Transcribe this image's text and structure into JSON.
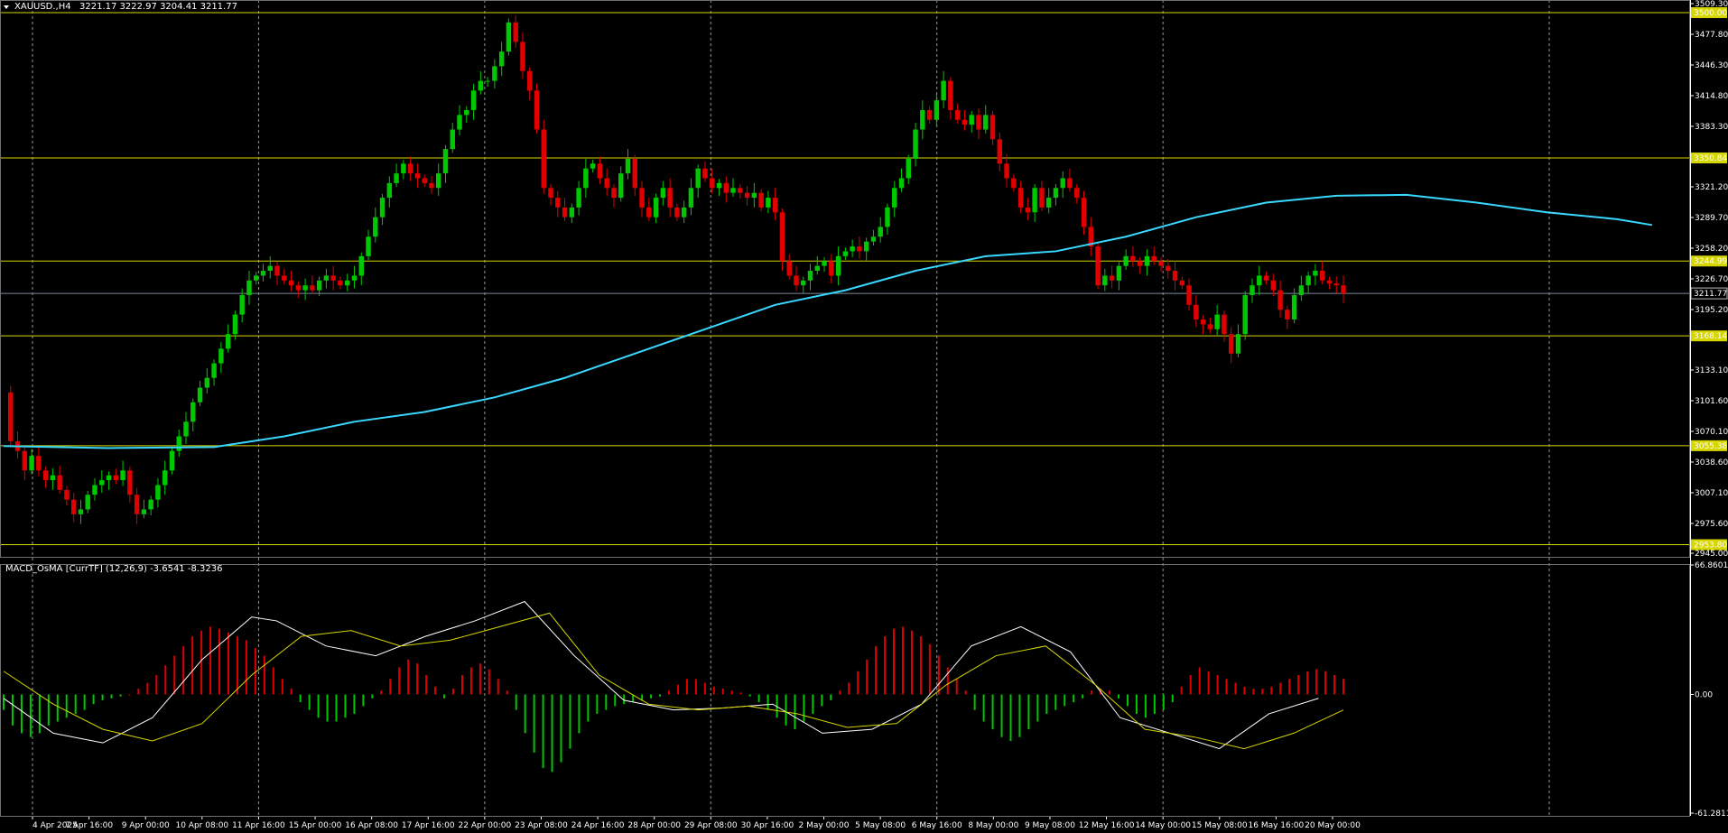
{
  "main_chart": {
    "symbol": "XAUUSD.,H4",
    "ohlc_label": "3221.17 3222.97 3204.41 3211.77",
    "colors": {
      "bull": "#00c800",
      "bear": "#e00000",
      "ma": "#38d8ff",
      "level": "#d6d600",
      "grid": "#c8c8c8",
      "price_line": "#7a8b99"
    }
  },
  "indicator": {
    "title": "MACD_OsMA [CurrTF] (12,26,9) -3.6541 -8.3236",
    "colors": {
      "hist_pos": "#dc0000",
      "hist_neg": "#00c800",
      "macd": "#ffffff",
      "signal": "#d6d600"
    }
  },
  "chart_data": [
    {
      "type": "candlestick",
      "title": "XAUUSD.,H4",
      "ylim": [
        2945.0,
        3509.3
      ],
      "x_labels": [
        "4 Apr 2025",
        "7 Apr 16:00",
        "9 Apr 00:00",
        "10 Apr 08:00",
        "11 Apr 16:00",
        "15 Apr 00:00",
        "16 Apr 08:00",
        "17 Apr 16:00",
        "22 Apr 00:00",
        "23 Apr 08:00",
        "24 Apr 16:00",
        "28 Apr 00:00",
        "29 Apr 08:00",
        "30 Apr 16:00",
        "2 May 00:00",
        "5 May 08:00",
        "6 May 16:00",
        "8 May 00:00",
        "9 May 08:00",
        "12 May 16:00",
        "14 May 00:00",
        "15 May 08:00",
        "16 May 16:00",
        "20 May 00:00"
      ],
      "price_axis_ticks": [
        "3509.30",
        "3477.80",
        "3446.30",
        "3414.80",
        "3383.30",
        "3321.20",
        "3289.70",
        "3258.20",
        "3226.70",
        "3195.20",
        "3133.10",
        "3101.60",
        "3070.10",
        "3038.60",
        "3007.10",
        "2975.60",
        "2945.00"
      ],
      "horizontal_levels": [
        "3500.00",
        "3350.84",
        "3244.99",
        "3168.14",
        "3055.38",
        "2953.80"
      ],
      "current_price": "3211.77",
      "series_close": [
        3110,
        3060,
        3050,
        3030,
        3045,
        3030,
        3020,
        3025,
        3010,
        3000,
        2985,
        2990,
        3005,
        3015,
        3020,
        3025,
        3020,
        3030,
        3005,
        2985,
        2990,
        3000,
        3015,
        3030,
        3050,
        3065,
        3080,
        3100,
        3115,
        3125,
        3140,
        3155,
        3170,
        3190,
        3210,
        3225,
        3230,
        3235,
        3240,
        3230,
        3225,
        3220,
        3215,
        3220,
        3215,
        3225,
        3230,
        3225,
        3220,
        3225,
        3230,
        3250,
        3270,
        3290,
        3310,
        3325,
        3335,
        3345,
        3335,
        3330,
        3325,
        3320,
        3335,
        3360,
        3380,
        3395,
        3400,
        3420,
        3430,
        3430,
        3445,
        3460,
        3490,
        3470,
        3440,
        3420,
        3380,
        3320,
        3310,
        3300,
        3290,
        3300,
        3320,
        3340,
        3345,
        3330,
        3320,
        3310,
        3335,
        3350,
        3320,
        3300,
        3290,
        3310,
        3320,
        3300,
        3290,
        3300,
        3320,
        3340,
        3330,
        3320,
        3325,
        3315,
        3320,
        3315,
        3310,
        3315,
        3300,
        3310,
        3295,
        3245,
        3230,
        3220,
        3225,
        3235,
        3240,
        3245,
        3230,
        3250,
        3255,
        3260,
        3255,
        3265,
        3270,
        3280,
        3300,
        3320,
        3330,
        3350,
        3380,
        3400,
        3390,
        3410,
        3430,
        3400,
        3390,
        3385,
        3395,
        3380,
        3395,
        3370,
        3345,
        3330,
        3320,
        3300,
        3295,
        3320,
        3300,
        3310,
        3320,
        3330,
        3320,
        3310,
        3280,
        3260,
        3220,
        3230,
        3225,
        3240,
        3250,
        3245,
        3240,
        3250,
        3245,
        3240,
        3235,
        3225,
        3220,
        3200,
        3185,
        3180,
        3175,
        3190,
        3170,
        3150,
        3170,
        3210,
        3220,
        3230,
        3225,
        3215,
        3195,
        3185,
        3210,
        3220,
        3230,
        3235,
        3225,
        3222,
        3220,
        3211.77
      ],
      "ma_line": [
        {
          "x": 0,
          "y": 3055
        },
        {
          "x": 15,
          "y": 3053
        },
        {
          "x": 30,
          "y": 3054
        },
        {
          "x": 40,
          "y": 3065
        },
        {
          "x": 50,
          "y": 3080
        },
        {
          "x": 60,
          "y": 3090
        },
        {
          "x": 70,
          "y": 3105
        },
        {
          "x": 80,
          "y": 3125
        },
        {
          "x": 90,
          "y": 3150
        },
        {
          "x": 100,
          "y": 3175
        },
        {
          "x": 110,
          "y": 3200
        },
        {
          "x": 120,
          "y": 3215
        },
        {
          "x": 130,
          "y": 3235
        },
        {
          "x": 140,
          "y": 3250
        },
        {
          "x": 150,
          "y": 3255
        },
        {
          "x": 160,
          "y": 3270
        },
        {
          "x": 170,
          "y": 3290
        },
        {
          "x": 180,
          "y": 3305
        },
        {
          "x": 190,
          "y": 3312
        },
        {
          "x": 200,
          "y": 3313
        },
        {
          "x": 210,
          "y": 3305
        },
        {
          "x": 220,
          "y": 3295
        },
        {
          "x": 230,
          "y": 3288
        },
        {
          "x": 235,
          "y": 3282
        }
      ]
    },
    {
      "type": "macd",
      "title": "MACD_OsMA [CurrTF] (12,26,9)",
      "ylim": [
        -61.2811,
        66.8601
      ],
      "ticks": [
        "66.8601",
        "0.00",
        "-61.2811"
      ],
      "histogram": [
        -8,
        -16,
        -20,
        -22,
        -20,
        -16,
        -14,
        -12,
        -10,
        -8,
        -5,
        -3,
        -2,
        -1,
        0,
        3,
        6,
        10,
        15,
        20,
        25,
        30,
        33,
        35,
        34,
        32,
        30,
        28,
        24,
        20,
        14,
        8,
        3,
        -4,
        -8,
        -12,
        -14,
        -14,
        -12,
        -10,
        -6,
        -2,
        2,
        8,
        14,
        18,
        16,
        10,
        4,
        -2,
        3,
        10,
        14,
        16,
        13,
        8,
        2,
        -8,
        -20,
        -30,
        -38,
        -40,
        -35,
        -28,
        -20,
        -14,
        -10,
        -8,
        -6,
        -5,
        -4,
        -3,
        -2,
        -1,
        2,
        5,
        8,
        8,
        6,
        4,
        3,
        2,
        1,
        -1,
        -4,
        -8,
        -12,
        -16,
        -18,
        -14,
        -10,
        -6,
        -3,
        2,
        6,
        12,
        18,
        25,
        30,
        34,
        35,
        33,
        30,
        26,
        20,
        14,
        8,
        2,
        -8,
        -14,
        -18,
        -22,
        -24,
        -22,
        -18,
        -14,
        -10,
        -8,
        -6,
        -4,
        -2,
        2,
        3,
        2,
        -2,
        -6,
        -10,
        -12,
        -10,
        -8,
        -4,
        4,
        10,
        14,
        12,
        10,
        8,
        6,
        4,
        3,
        3,
        4,
        6,
        8,
        10,
        12,
        13,
        12,
        10,
        8
      ],
      "macd_line": [
        {
          "x": 0,
          "y": -2
        },
        {
          "x": 10,
          "y": -20
        },
        {
          "x": 20,
          "y": -25
        },
        {
          "x": 30,
          "y": -12
        },
        {
          "x": 40,
          "y": 18
        },
        {
          "x": 50,
          "y": 40
        },
        {
          "x": 55,
          "y": 38
        },
        {
          "x": 65,
          "y": 25
        },
        {
          "x": 75,
          "y": 20
        },
        {
          "x": 85,
          "y": 30
        },
        {
          "x": 95,
          "y": 38
        },
        {
          "x": 105,
          "y": 48
        },
        {
          "x": 115,
          "y": 20
        },
        {
          "x": 125,
          "y": -3
        },
        {
          "x": 135,
          "y": -8
        },
        {
          "x": 145,
          "y": -7
        },
        {
          "x": 155,
          "y": -5
        },
        {
          "x": 165,
          "y": -20
        },
        {
          "x": 175,
          "y": -18
        },
        {
          "x": 185,
          "y": -5
        },
        {
          "x": 195,
          "y": 25
        },
        {
          "x": 205,
          "y": 35
        },
        {
          "x": 215,
          "y": 22
        },
        {
          "x": 225,
          "y": -12
        },
        {
          "x": 235,
          "y": -20
        },
        {
          "x": 245,
          "y": -28
        },
        {
          "x": 255,
          "y": -10
        },
        {
          "x": 265,
          "y": -2
        }
      ],
      "signal_line": [
        {
          "x": 0,
          "y": 12
        },
        {
          "x": 10,
          "y": -5
        },
        {
          "x": 20,
          "y": -18
        },
        {
          "x": 30,
          "y": -24
        },
        {
          "x": 40,
          "y": -15
        },
        {
          "x": 50,
          "y": 10
        },
        {
          "x": 60,
          "y": 30
        },
        {
          "x": 70,
          "y": 33
        },
        {
          "x": 80,
          "y": 25
        },
        {
          "x": 90,
          "y": 28
        },
        {
          "x": 100,
          "y": 35
        },
        {
          "x": 110,
          "y": 42
        },
        {
          "x": 120,
          "y": 10
        },
        {
          "x": 130,
          "y": -5
        },
        {
          "x": 140,
          "y": -8
        },
        {
          "x": 150,
          "y": -6
        },
        {
          "x": 160,
          "y": -10
        },
        {
          "x": 170,
          "y": -17
        },
        {
          "x": 180,
          "y": -15
        },
        {
          "x": 190,
          "y": 5
        },
        {
          "x": 200,
          "y": 20
        },
        {
          "x": 210,
          "y": 25
        },
        {
          "x": 220,
          "y": 5
        },
        {
          "x": 230,
          "y": -18
        },
        {
          "x": 240,
          "y": -22
        },
        {
          "x": 250,
          "y": -28
        },
        {
          "x": 260,
          "y": -20
        },
        {
          "x": 270,
          "y": -8
        }
      ]
    }
  ]
}
